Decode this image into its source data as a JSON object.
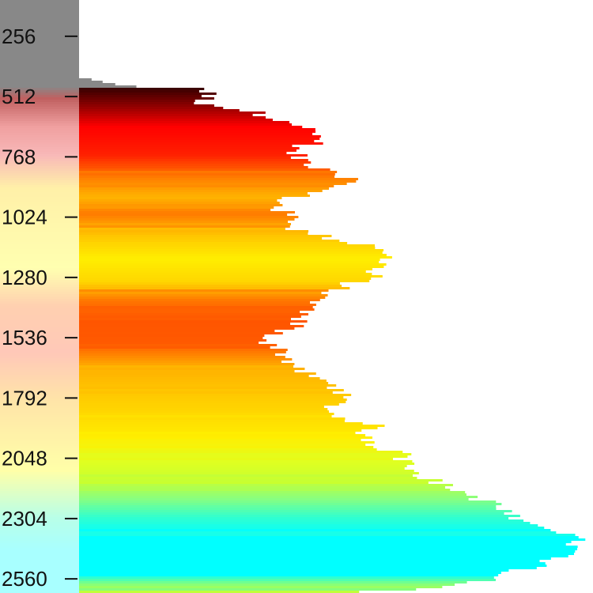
{
  "chart_data": {
    "type": "bar",
    "orientation": "horizontal",
    "grid": false,
    "legend": "none",
    "y_axis": {
      "ticks": [
        256,
        512,
        768,
        1024,
        1280,
        1536,
        1792,
        2048,
        2304,
        2560
      ],
      "tick_labels": [
        "256",
        "512",
        "768",
        "1024",
        "1280",
        "1536",
        "1792",
        "2048",
        "2304",
        "2560"
      ],
      "range": [
        102,
        2620
      ],
      "inverted": true
    },
    "x_axis": {
      "range": [
        0,
        1
      ],
      "ticks": []
    },
    "value_profile": [
      [
        102,
        0.08
      ],
      [
        130,
        0.07
      ],
      [
        160,
        0.06
      ],
      [
        190,
        0.03
      ],
      [
        215,
        0.12
      ],
      [
        230,
        0.16
      ],
      [
        250,
        0.18
      ],
      [
        275,
        0.14
      ],
      [
        300,
        0.12
      ],
      [
        330,
        0.07
      ],
      [
        350,
        0.09
      ],
      [
        380,
        0.12
      ],
      [
        410,
        0.2
      ],
      [
        440,
        0.31
      ],
      [
        470,
        0.4
      ],
      [
        500,
        0.41
      ],
      [
        540,
        0.4
      ],
      [
        580,
        0.56
      ],
      [
        620,
        0.69
      ],
      [
        660,
        0.74
      ],
      [
        700,
        0.78
      ],
      [
        740,
        0.67
      ],
      [
        770,
        0.7
      ],
      [
        800,
        0.75
      ],
      [
        830,
        0.79
      ],
      [
        860,
        0.88
      ],
      [
        890,
        0.84
      ],
      [
        920,
        0.74
      ],
      [
        950,
        0.66
      ],
      [
        980,
        0.63
      ],
      [
        1010,
        0.66
      ],
      [
        1040,
        0.7
      ],
      [
        1070,
        0.68
      ],
      [
        1100,
        0.76
      ],
      [
        1140,
        0.9
      ],
      [
        1180,
        0.98
      ],
      [
        1220,
        1.0
      ],
      [
        1250,
        0.92
      ],
      [
        1280,
        0.94
      ],
      [
        1310,
        0.86
      ],
      [
        1340,
        0.8
      ],
      [
        1370,
        0.76
      ],
      [
        1400,
        0.75
      ],
      [
        1430,
        0.72
      ],
      [
        1460,
        0.7
      ],
      [
        1490,
        0.69
      ],
      [
        1520,
        0.62
      ],
      [
        1550,
        0.6
      ],
      [
        1580,
        0.64
      ],
      [
        1610,
        0.66
      ],
      [
        1640,
        0.68
      ],
      [
        1670,
        0.7
      ],
      [
        1700,
        0.74
      ],
      [
        1730,
        0.8
      ],
      [
        1760,
        0.82
      ],
      [
        1790,
        0.84
      ],
      [
        1820,
        0.82
      ],
      [
        1850,
        0.8
      ],
      [
        1880,
        0.86
      ],
      [
        1910,
        0.94
      ],
      [
        1940,
        0.92
      ],
      [
        1970,
        0.93
      ],
      [
        2000,
        0.96
      ],
      [
        2030,
        1.03
      ],
      [
        2060,
        1.05
      ],
      [
        2090,
        1.08
      ],
      [
        2120,
        1.1
      ],
      [
        2150,
        1.14
      ],
      [
        2180,
        1.2
      ],
      [
        2210,
        1.26
      ],
      [
        2240,
        1.32
      ],
      [
        2270,
        1.36
      ],
      [
        2300,
        1.38
      ],
      [
        2330,
        1.42
      ],
      [
        2360,
        1.54
      ],
      [
        2390,
        1.59
      ],
      [
        2420,
        1.58
      ],
      [
        2450,
        1.57
      ],
      [
        2480,
        1.52
      ],
      [
        2510,
        1.46
      ],
      [
        2540,
        1.36
      ],
      [
        2570,
        1.3
      ],
      [
        2600,
        1.18
      ],
      [
        2620,
        0.82
      ]
    ],
    "color_gradient": [
      [
        102,
        "#888888"
      ],
      [
        470,
        "#888888"
      ],
      [
        480,
        "#3a0000"
      ],
      [
        560,
        "#990000"
      ],
      [
        640,
        "#ff0000"
      ],
      [
        760,
        "#ff2000"
      ],
      [
        860,
        "#ff8000"
      ],
      [
        940,
        "#ffb400"
      ],
      [
        1010,
        "#ff7a00"
      ],
      [
        1100,
        "#ffc400"
      ],
      [
        1200,
        "#ffee00"
      ],
      [
        1300,
        "#ffd600"
      ],
      [
        1380,
        "#ff7400"
      ],
      [
        1460,
        "#ff5500"
      ],
      [
        1560,
        "#ff5a00"
      ],
      [
        1660,
        "#ffae00"
      ],
      [
        1760,
        "#ffc600"
      ],
      [
        1860,
        "#ffd800"
      ],
      [
        1960,
        "#ffee00"
      ],
      [
        2060,
        "#e0ff20"
      ],
      [
        2140,
        "#c8ff30"
      ],
      [
        2220,
        "#88ff80"
      ],
      [
        2300,
        "#30ffd0"
      ],
      [
        2380,
        "#00ffff"
      ],
      [
        2540,
        "#00ffff"
      ],
      [
        2580,
        "#80ff80"
      ],
      [
        2620,
        "#c8ff30"
      ]
    ],
    "background_band_colors": [
      [
        102,
        "#888888"
      ],
      [
        470,
        "#888888"
      ],
      [
        520,
        "#c06060"
      ],
      [
        640,
        "#f0a0a0"
      ],
      [
        760,
        "#f8b8b8"
      ],
      [
        900,
        "#fff0a8"
      ],
      [
        1240,
        "#ffffb0"
      ],
      [
        1400,
        "#ffd0b0"
      ],
      [
        1600,
        "#ffc8b8"
      ],
      [
        1800,
        "#ffe4a8"
      ],
      [
        2100,
        "#ffffa8"
      ],
      [
        2300,
        "#b8ffe8"
      ],
      [
        2440,
        "#a8ffff"
      ],
      [
        2620,
        "#a8ffff"
      ]
    ]
  }
}
